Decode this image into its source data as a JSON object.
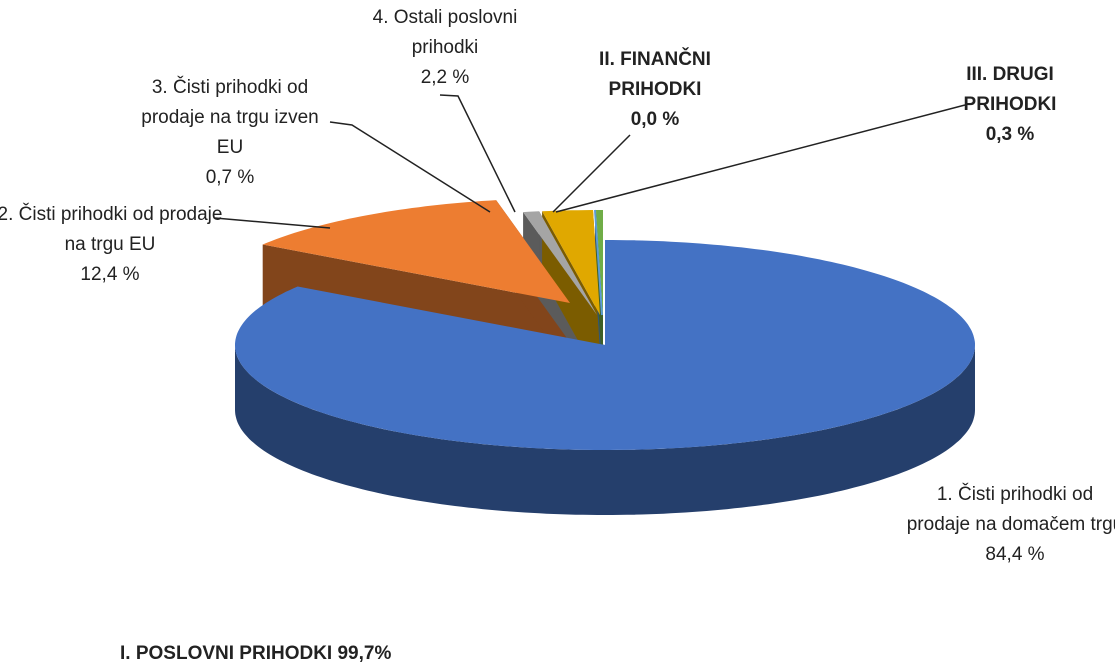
{
  "chart_data": {
    "type": "pie3d",
    "categories": [
      "1. Čisti prihodki od prodaje na domačem trgu",
      "2. Čisti prihodki od prodaje na trgu EU",
      "3. Čisti prihodki od prodaje na trgu izven EU",
      "4. Ostali poslovni prihodki",
      "II. FINANČNI PRIHODKI",
      "III. DRUGI PRIHODKI"
    ],
    "values": [
      84.4,
      12.4,
      0.7,
      2.2,
      0.0,
      0.3
    ],
    "value_labels": [
      "84,4 %",
      "12,4 %",
      "0,7 %",
      "2,2 %",
      "0,0 %",
      "0,3 %"
    ],
    "colors": [
      "#4472c4",
      "#ed7d31",
      "#a5a5a5",
      "#e0a800",
      "#5b9bd5",
      "#70ad47"
    ],
    "annotation": "I. POSLOVNI PRIHODKI 99,7%"
  }
}
